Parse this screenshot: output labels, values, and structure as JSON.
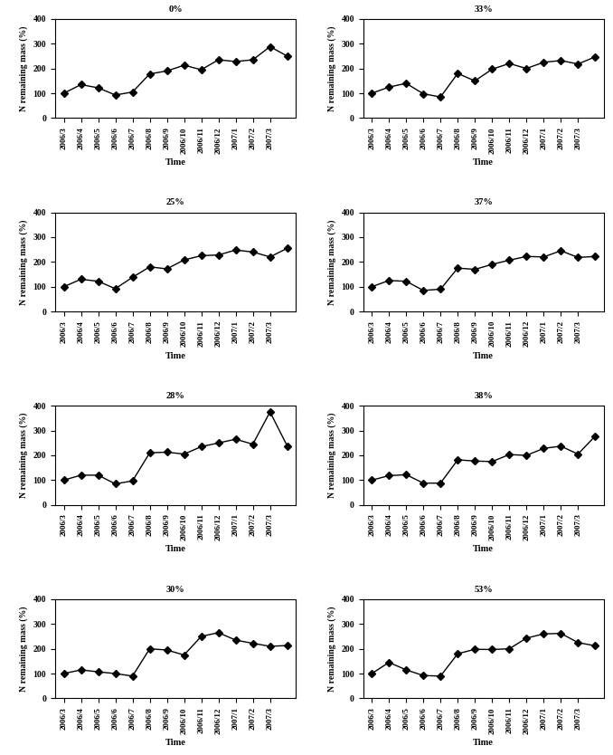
{
  "chart_data": [
    {
      "type": "line",
      "title": "0%",
      "x_label": "Time",
      "y_label": "N remaining mass (%)",
      "categories": [
        "2006/3",
        "2006/4",
        "2006/5",
        "2006/6",
        "2006/7",
        "2006/8",
        "2006/9",
        "2006/10",
        "2006/11",
        "2006/12",
        "2007/1",
        "2007/2",
        "2007/3",
        null
      ],
      "values": [
        100,
        135,
        122,
        93,
        105,
        178,
        190,
        213,
        195,
        235,
        228,
        235,
        288,
        250
      ],
      "ylim": [
        0,
        400
      ],
      "yticks": [
        0,
        100,
        200,
        300,
        400
      ],
      "color": "#000000",
      "marker": "diamond"
    },
    {
      "type": "line",
      "title": "33%",
      "x_label": "Time",
      "y_label": "N remaining mass (%)",
      "categories": [
        "2006/3",
        "2006/4",
        "2006/5",
        "2006/6",
        "2006/7",
        "2006/8",
        "2006/9",
        "2006/10",
        "2006/11",
        "2006/12",
        "2007/1",
        "2007/2",
        "2007/3",
        null
      ],
      "values": [
        100,
        125,
        140,
        98,
        85,
        180,
        150,
        197,
        220,
        200,
        225,
        232,
        218,
        247
      ],
      "ylim": [
        0,
        400
      ],
      "yticks": [
        0,
        100,
        200,
        300,
        400
      ],
      "color": "#000000",
      "marker": "diamond"
    },
    {
      "type": "line",
      "title": "25%",
      "x_label": "Time",
      "y_label": "N remaining mass (%)",
      "categories": [
        "2006/3",
        "2006/4",
        "2006/5",
        "2006/6",
        "2006/7",
        "2006/8",
        "2006/9",
        "2006/10",
        "2006/11",
        "2006/12",
        "2007/1",
        "2007/2",
        "2007/3",
        null
      ],
      "values": [
        100,
        130,
        122,
        92,
        138,
        180,
        172,
        208,
        225,
        228,
        248,
        240,
        220,
        255
      ],
      "ylim": [
        0,
        400
      ],
      "yticks": [
        0,
        100,
        200,
        300,
        400
      ],
      "color": "#000000",
      "marker": "diamond"
    },
    {
      "type": "line",
      "title": "37%",
      "x_label": "Time",
      "y_label": "N remaining mass (%)",
      "categories": [
        "2006/3",
        "2006/4",
        "2006/5",
        "2006/6",
        "2006/7",
        "2006/8",
        "2006/9",
        "2006/10",
        "2006/11",
        "2006/12",
        "2007/1",
        "2007/2",
        "2007/3",
        null
      ],
      "values": [
        100,
        125,
        122,
        85,
        90,
        175,
        170,
        190,
        207,
        222,
        220,
        245,
        218,
        222
      ],
      "ylim": [
        0,
        400
      ],
      "yticks": [
        0,
        100,
        200,
        300,
        400
      ],
      "color": "#000000",
      "marker": "diamond"
    },
    {
      "type": "line",
      "title": "28%",
      "x_label": "Time",
      "y_label": "N remaining mass (%)",
      "categories": [
        "2006/3",
        "2006/4",
        "2006/5",
        "2006/6",
        "2006/7",
        "2006/8",
        "2006/9",
        "2006/10",
        "2006/11",
        "2006/12",
        "2007/1",
        "2007/2",
        "2007/3",
        null
      ],
      "values": [
        100,
        120,
        120,
        85,
        97,
        210,
        213,
        205,
        235,
        250,
        265,
        245,
        375,
        238
      ],
      "ylim": [
        0,
        400
      ],
      "yticks": [
        0,
        100,
        200,
        300,
        400
      ],
      "color": "#000000",
      "marker": "diamond"
    },
    {
      "type": "line",
      "title": "38%",
      "x_label": "Time",
      "y_label": "N remaining mass (%)",
      "categories": [
        "2006/3",
        "2006/4",
        "2006/5",
        "2006/6",
        "2006/7",
        "2006/8",
        "2006/9",
        "2006/10",
        "2006/11",
        "2006/12",
        "2007/1",
        "2007/2",
        "2007/3",
        null
      ],
      "values": [
        100,
        118,
        122,
        88,
        88,
        182,
        177,
        175,
        203,
        200,
        228,
        237,
        205,
        278
      ],
      "ylim": [
        0,
        400
      ],
      "yticks": [
        0,
        100,
        200,
        300,
        400
      ],
      "color": "#000000",
      "marker": "diamond"
    },
    {
      "type": "line",
      "title": "30%",
      "x_label": "Time",
      "y_label": "N remaining mass (%)",
      "categories": [
        "2006/3",
        "2006/4",
        "2006/5",
        "2006/6",
        "2006/7",
        "2006/8",
        "2006/9",
        "2006/10",
        "2006/11",
        "2006/12",
        "2007/1",
        "2007/2",
        "2007/3",
        null
      ],
      "values": [
        100,
        115,
        107,
        100,
        90,
        200,
        195,
        175,
        250,
        265,
        235,
        222,
        210,
        213
      ],
      "ylim": [
        0,
        400
      ],
      "yticks": [
        0,
        100,
        200,
        300,
        400
      ],
      "color": "#000000",
      "marker": "diamond"
    },
    {
      "type": "line",
      "title": "53%",
      "x_label": "Time",
      "y_label": "N remaining mass (%)",
      "categories": [
        "2006/3",
        "2006/4",
        "2006/5",
        "2006/6",
        "2006/7",
        "2006/8",
        "2006/9",
        "2006/10",
        "2006/11",
        "2006/12",
        "2007/1",
        "2007/2",
        "2007/3",
        null
      ],
      "values": [
        100,
        145,
        115,
        92,
        90,
        180,
        198,
        197,
        200,
        243,
        260,
        262,
        225,
        212
      ],
      "ylim": [
        0,
        400
      ],
      "yticks": [
        0,
        100,
        200,
        300,
        400
      ],
      "color": "#000000",
      "marker": "diamond"
    }
  ]
}
